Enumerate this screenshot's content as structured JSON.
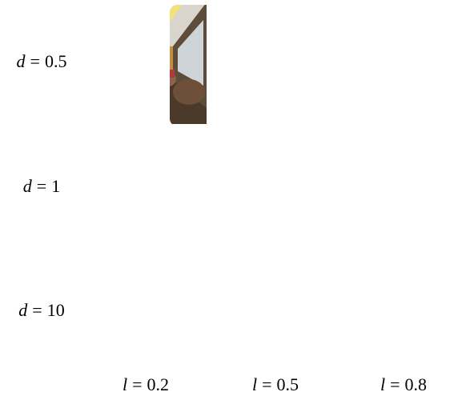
{
  "figure": {
    "row_labels": [
      {
        "symbol": "d",
        "relation": "=",
        "value": "0.5"
      },
      {
        "symbol": "d",
        "relation": "=",
        "value": "1"
      },
      {
        "symbol": "d",
        "relation": "=",
        "value": "10"
      }
    ],
    "column_labels": [
      {
        "symbol": "l",
        "relation": "=",
        "value": "0.2"
      },
      {
        "symbol": "l",
        "relation": "=",
        "value": "0.5"
      },
      {
        "symbol": "l",
        "relation": "=",
        "value": "0.8"
      }
    ]
  }
}
